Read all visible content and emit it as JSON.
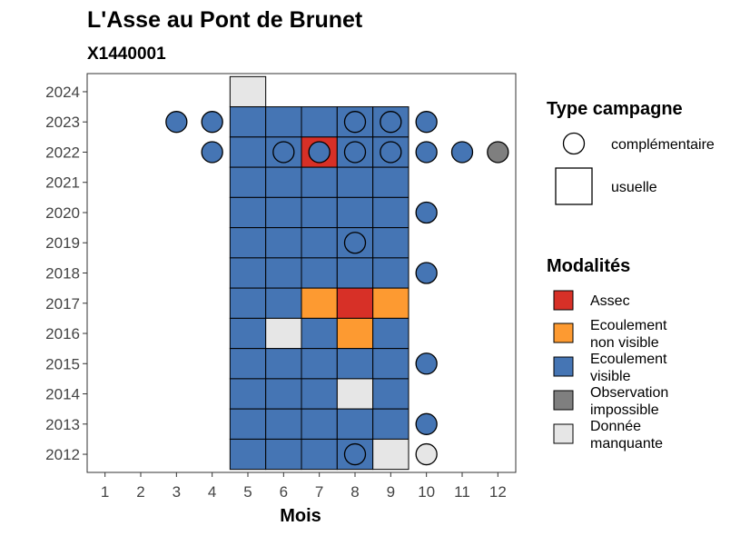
{
  "chart_data": {
    "type": "heatmap",
    "title": "L'Asse au Pont de Brunet",
    "subtitle": "X1440001",
    "xlabel": "Mois",
    "ylabel": "",
    "x_ticks": [
      1,
      2,
      3,
      4,
      5,
      6,
      7,
      8,
      9,
      10,
      11,
      12
    ],
    "y_ticks": [
      2012,
      2013,
      2014,
      2015,
      2016,
      2017,
      2018,
      2019,
      2020,
      2021,
      2022,
      2023,
      2024
    ],
    "xlim": [
      0.5,
      12.5
    ],
    "ylim": [
      2011.4,
      2024.6
    ],
    "grid": false,
    "legend": {
      "position": "right",
      "type_title": "Type campagne",
      "type_items": [
        {
          "label": "complémentaire",
          "shape": "circle"
        },
        {
          "label": "usuelle",
          "shape": "square"
        }
      ],
      "mod_title": "Modalités",
      "mod_items": [
        {
          "key": "assec",
          "label_lines": [
            "Assec"
          ],
          "color": "#d73027"
        },
        {
          "key": "ecoulement_non_visible",
          "label_lines": [
            "Ecoulement",
            "non visible"
          ],
          "color": "#fd9a31"
        },
        {
          "key": "ecoulement_visible",
          "label_lines": [
            "Ecoulement",
            "visible"
          ],
          "color": "#4575b4"
        },
        {
          "key": "observation_impossible",
          "label_lines": [
            "Observation",
            "impossible"
          ],
          "color": "#7f7f7f"
        },
        {
          "key": "donnee_manquante",
          "label_lines": [
            "Donnée",
            "manquante"
          ],
          "color": "#e6e6e6"
        }
      ]
    },
    "usuelle": [
      {
        "year": 2024,
        "month": 5,
        "modalite": "donnee_manquante"
      },
      {
        "year": 2023,
        "month": 5,
        "modalite": "ecoulement_visible"
      },
      {
        "year": 2023,
        "month": 6,
        "modalite": "ecoulement_visible"
      },
      {
        "year": 2023,
        "month": 7,
        "modalite": "ecoulement_visible"
      },
      {
        "year": 2023,
        "month": 8,
        "modalite": "ecoulement_visible"
      },
      {
        "year": 2023,
        "month": 9,
        "modalite": "ecoulement_visible"
      },
      {
        "year": 2022,
        "month": 5,
        "modalite": "ecoulement_visible"
      },
      {
        "year": 2022,
        "month": 6,
        "modalite": "ecoulement_visible"
      },
      {
        "year": 2022,
        "month": 7,
        "modalite": "assec"
      },
      {
        "year": 2022,
        "month": 8,
        "modalite": "ecoulement_visible"
      },
      {
        "year": 2022,
        "month": 9,
        "modalite": "ecoulement_visible"
      },
      {
        "year": 2021,
        "month": 5,
        "modalite": "ecoulement_visible"
      },
      {
        "year": 2021,
        "month": 6,
        "modalite": "ecoulement_visible"
      },
      {
        "year": 2021,
        "month": 7,
        "modalite": "ecoulement_visible"
      },
      {
        "year": 2021,
        "month": 8,
        "modalite": "ecoulement_visible"
      },
      {
        "year": 2021,
        "month": 9,
        "modalite": "ecoulement_visible"
      },
      {
        "year": 2020,
        "month": 5,
        "modalite": "ecoulement_visible"
      },
      {
        "year": 2020,
        "month": 6,
        "modalite": "ecoulement_visible"
      },
      {
        "year": 2020,
        "month": 7,
        "modalite": "ecoulement_visible"
      },
      {
        "year": 2020,
        "month": 8,
        "modalite": "ecoulement_visible"
      },
      {
        "year": 2020,
        "month": 9,
        "modalite": "ecoulement_visible"
      },
      {
        "year": 2019,
        "month": 5,
        "modalite": "ecoulement_visible"
      },
      {
        "year": 2019,
        "month": 6,
        "modalite": "ecoulement_visible"
      },
      {
        "year": 2019,
        "month": 7,
        "modalite": "ecoulement_visible"
      },
      {
        "year": 2019,
        "month": 8,
        "modalite": "ecoulement_visible"
      },
      {
        "year": 2019,
        "month": 9,
        "modalite": "ecoulement_visible"
      },
      {
        "year": 2018,
        "month": 5,
        "modalite": "ecoulement_visible"
      },
      {
        "year": 2018,
        "month": 6,
        "modalite": "ecoulement_visible"
      },
      {
        "year": 2018,
        "month": 7,
        "modalite": "ecoulement_visible"
      },
      {
        "year": 2018,
        "month": 8,
        "modalite": "ecoulement_visible"
      },
      {
        "year": 2018,
        "month": 9,
        "modalite": "ecoulement_visible"
      },
      {
        "year": 2017,
        "month": 5,
        "modalite": "ecoulement_visible"
      },
      {
        "year": 2017,
        "month": 6,
        "modalite": "ecoulement_visible"
      },
      {
        "year": 2017,
        "month": 7,
        "modalite": "ecoulement_non_visible"
      },
      {
        "year": 2017,
        "month": 8,
        "modalite": "assec"
      },
      {
        "year": 2017,
        "month": 9,
        "modalite": "ecoulement_non_visible"
      },
      {
        "year": 2016,
        "month": 5,
        "modalite": "ecoulement_visible"
      },
      {
        "year": 2016,
        "month": 6,
        "modalite": "donnee_manquante"
      },
      {
        "year": 2016,
        "month": 7,
        "modalite": "ecoulement_visible"
      },
      {
        "year": 2016,
        "month": 8,
        "modalite": "ecoulement_non_visible"
      },
      {
        "year": 2016,
        "month": 9,
        "modalite": "ecoulement_visible"
      },
      {
        "year": 2015,
        "month": 5,
        "modalite": "ecoulement_visible"
      },
      {
        "year": 2015,
        "month": 6,
        "modalite": "ecoulement_visible"
      },
      {
        "year": 2015,
        "month": 7,
        "modalite": "ecoulement_visible"
      },
      {
        "year": 2015,
        "month": 8,
        "modalite": "ecoulement_visible"
      },
      {
        "year": 2015,
        "month": 9,
        "modalite": "ecoulement_visible"
      },
      {
        "year": 2014,
        "month": 5,
        "modalite": "ecoulement_visible"
      },
      {
        "year": 2014,
        "month": 6,
        "modalite": "ecoulement_visible"
      },
      {
        "year": 2014,
        "month": 7,
        "modalite": "ecoulement_visible"
      },
      {
        "year": 2014,
        "month": 8,
        "modalite": "donnee_manquante"
      },
      {
        "year": 2014,
        "month": 9,
        "modalite": "ecoulement_visible"
      },
      {
        "year": 2013,
        "month": 5,
        "modalite": "ecoulement_visible"
      },
      {
        "year": 2013,
        "month": 6,
        "modalite": "ecoulement_visible"
      },
      {
        "year": 2013,
        "month": 7,
        "modalite": "ecoulement_visible"
      },
      {
        "year": 2013,
        "month": 8,
        "modalite": "ecoulement_visible"
      },
      {
        "year": 2013,
        "month": 9,
        "modalite": "ecoulement_visible"
      },
      {
        "year": 2012,
        "month": 5,
        "modalite": "ecoulement_visible"
      },
      {
        "year": 2012,
        "month": 6,
        "modalite": "ecoulement_visible"
      },
      {
        "year": 2012,
        "month": 7,
        "modalite": "ecoulement_visible"
      },
      {
        "year": 2012,
        "month": 8,
        "modalite": "ecoulement_visible"
      },
      {
        "year": 2012,
        "month": 9,
        "modalite": "donnee_manquante"
      }
    ],
    "complementaire": [
      {
        "year": 2023,
        "month": 3,
        "modalite": "ecoulement_visible"
      },
      {
        "year": 2023,
        "month": 4,
        "modalite": "ecoulement_visible"
      },
      {
        "year": 2023,
        "month": 8,
        "modalite": "ecoulement_visible"
      },
      {
        "year": 2023,
        "month": 9,
        "modalite": "ecoulement_visible"
      },
      {
        "year": 2023,
        "month": 10,
        "modalite": "ecoulement_visible"
      },
      {
        "year": 2022,
        "month": 4,
        "modalite": "ecoulement_visible"
      },
      {
        "year": 2022,
        "month": 6,
        "modalite": "ecoulement_visible"
      },
      {
        "year": 2022,
        "month": 7,
        "modalite": "ecoulement_visible"
      },
      {
        "year": 2022,
        "month": 8,
        "modalite": "ecoulement_visible"
      },
      {
        "year": 2022,
        "month": 9,
        "modalite": "ecoulement_visible"
      },
      {
        "year": 2022,
        "month": 10,
        "modalite": "ecoulement_visible"
      },
      {
        "year": 2022,
        "month": 11,
        "modalite": "ecoulement_visible"
      },
      {
        "year": 2022,
        "month": 12,
        "modalite": "observation_impossible"
      },
      {
        "year": 2020,
        "month": 10,
        "modalite": "ecoulement_visible"
      },
      {
        "year": 2019,
        "month": 8,
        "modalite": "ecoulement_visible"
      },
      {
        "year": 2018,
        "month": 10,
        "modalite": "ecoulement_visible"
      },
      {
        "year": 2015,
        "month": 10,
        "modalite": "ecoulement_visible"
      },
      {
        "year": 2013,
        "month": 10,
        "modalite": "ecoulement_visible"
      },
      {
        "year": 2012,
        "month": 8,
        "modalite": "ecoulement_visible"
      },
      {
        "year": 2012,
        "month": 10,
        "modalite": "donnee_manquante"
      }
    ]
  }
}
